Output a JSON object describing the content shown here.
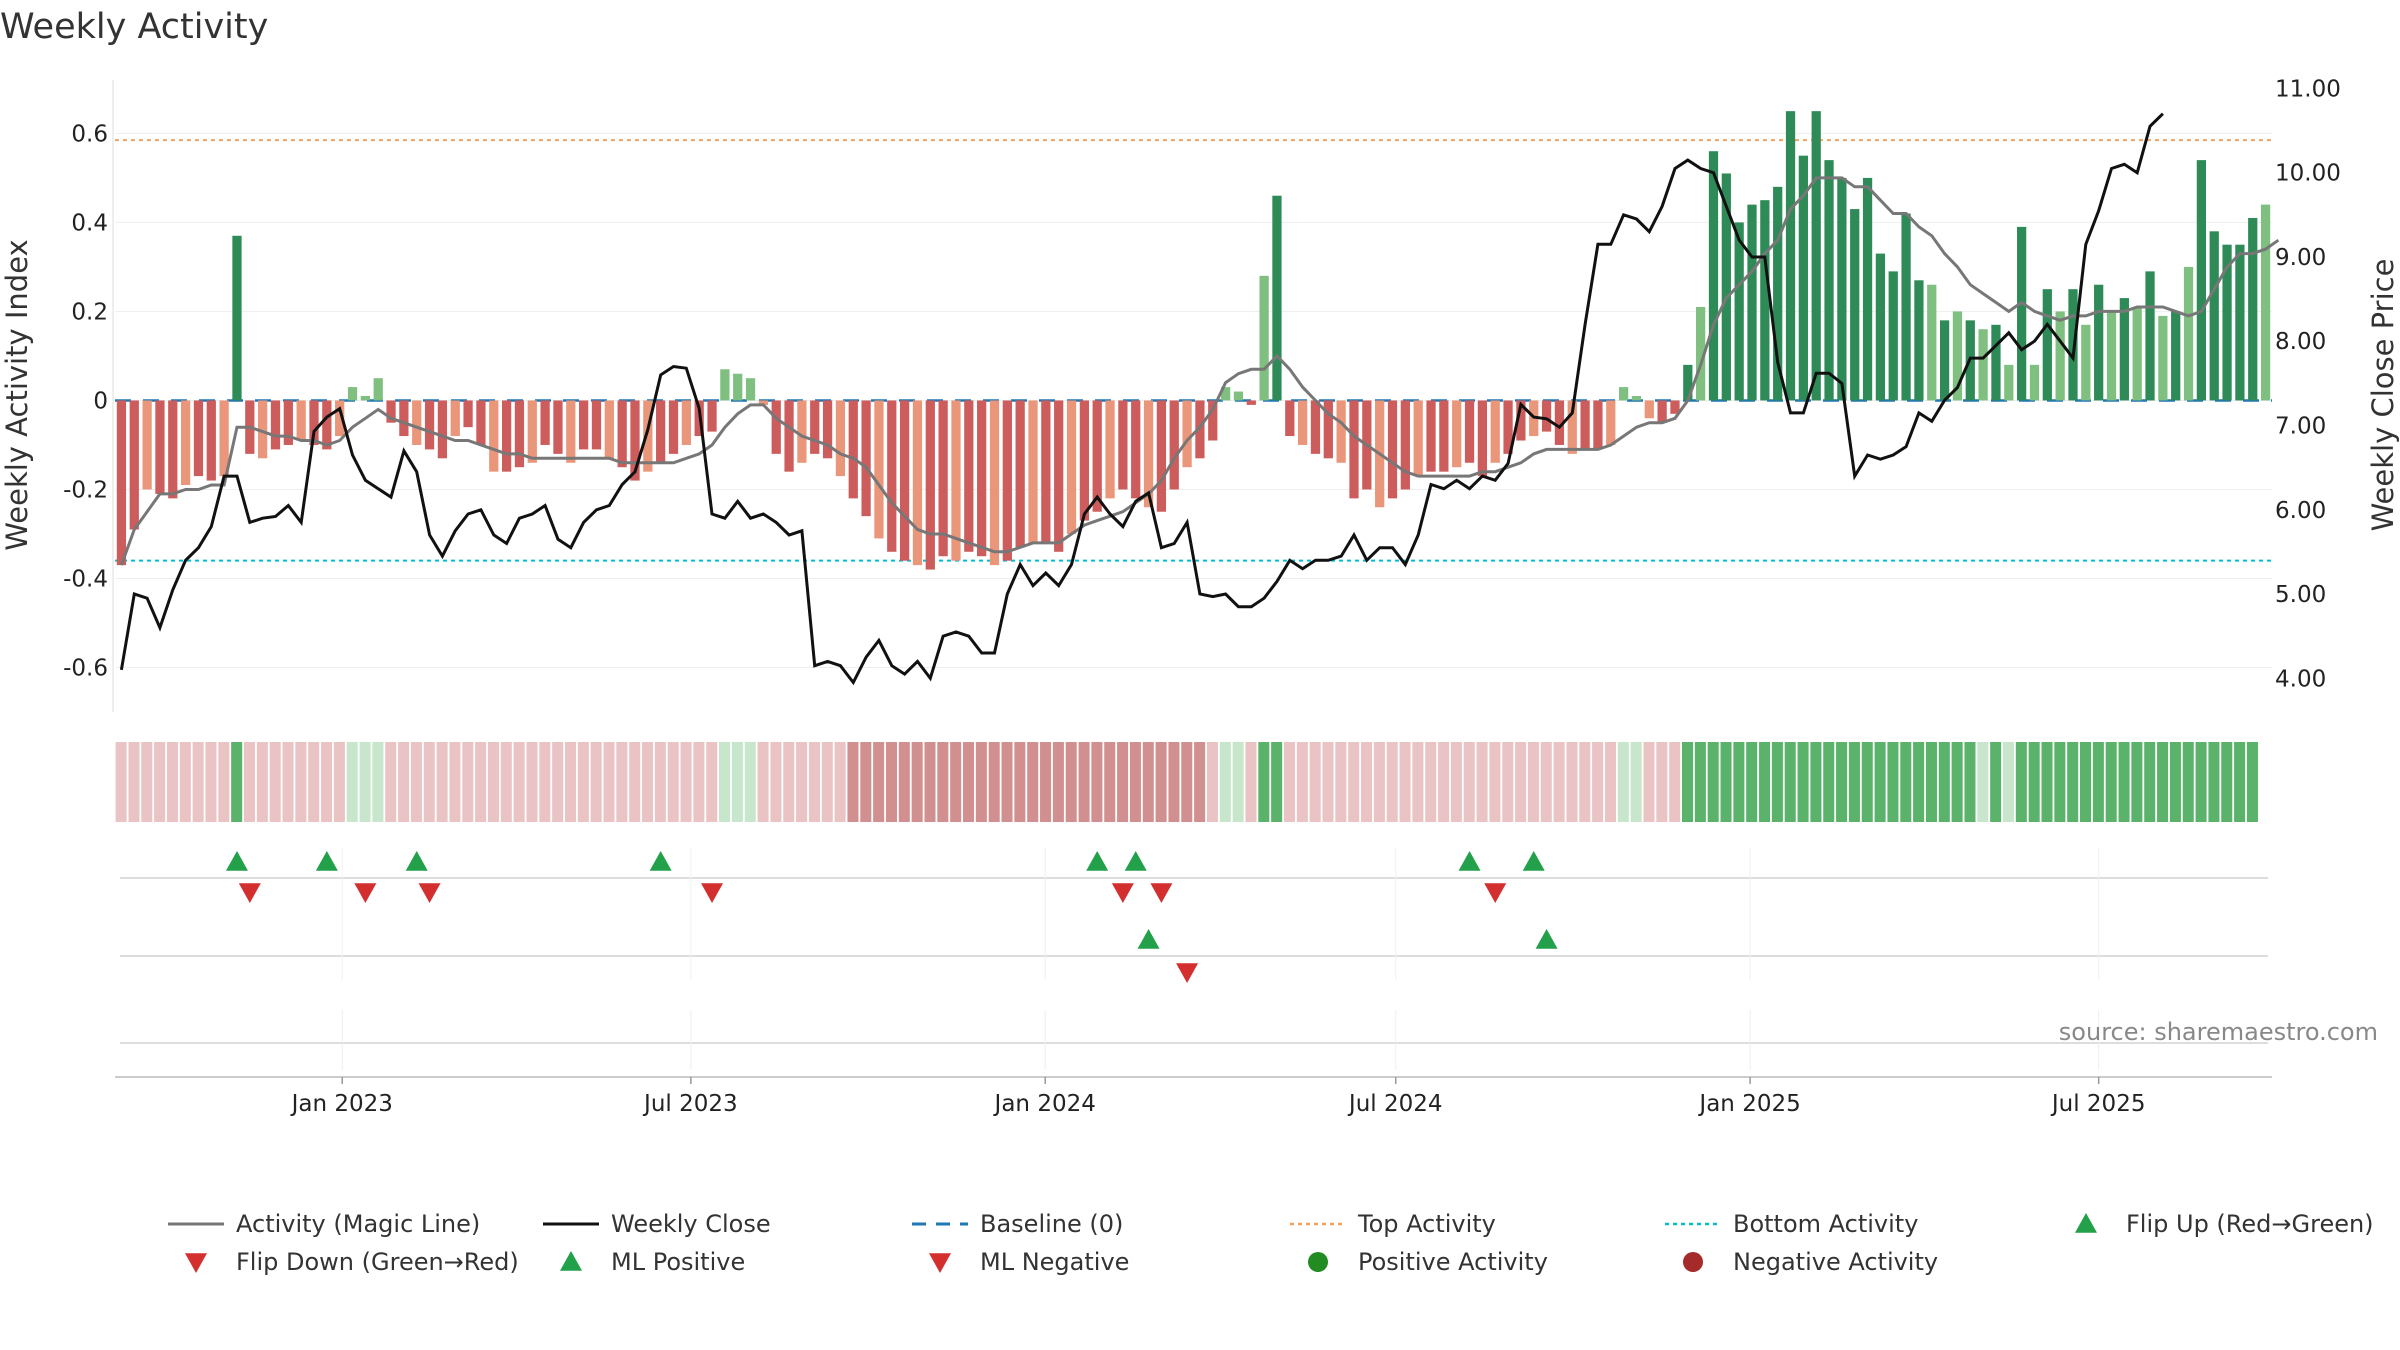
{
  "chart_data": {
    "type": "bar",
    "title": "Weekly Activity",
    "ylabel": "Weekly Activity Index",
    "y2label": "Weekly Close Price",
    "ylim": [
      -0.7,
      0.72
    ],
    "y2lim": [
      3.6,
      11.1
    ],
    "yticks": [
      -0.6,
      -0.4,
      -0.2,
      0,
      0.2,
      0.4,
      0.6
    ],
    "ytick_labels": [
      "-0.6",
      "-0.4",
      "-0.2",
      "0",
      "0.2",
      "0.4",
      "0.6"
    ],
    "y2ticks": [
      4,
      5,
      6,
      7,
      8,
      9,
      10,
      11
    ],
    "y2tick_labels": [
      "4.00",
      "5.00",
      "6.00",
      "7.00",
      "8.00",
      "9.00",
      "10.00",
      "11.00"
    ],
    "date_range": [
      "2022-09-05",
      "2025-09-29"
    ],
    "xticks": [
      "2023-01-01",
      "2023-07-01",
      "2024-01-01",
      "2024-07-01",
      "2025-01-01",
      "2025-07-01"
    ],
    "xtick_labels": [
      "Jan 2023",
      "Jul 2023",
      "Jan 2024",
      "Jul 2024",
      "Jan 2025",
      "Jul 2025"
    ],
    "reference_lines": {
      "baseline": 0,
      "top_activity": 0.585,
      "bottom_activity": -0.36
    },
    "activity": [
      -0.37,
      -0.29,
      -0.2,
      -0.21,
      -0.22,
      -0.19,
      -0.17,
      -0.18,
      -0.17,
      0.37,
      -0.12,
      -0.13,
      -0.11,
      -0.1,
      -0.09,
      -0.1,
      -0.11,
      -0.08,
      0.03,
      0.01,
      0.05,
      -0.05,
      -0.08,
      -0.1,
      -0.11,
      -0.13,
      -0.08,
      -0.06,
      -0.1,
      -0.16,
      -0.16,
      -0.15,
      -0.14,
      -0.1,
      -0.12,
      -0.14,
      -0.11,
      -0.11,
      -0.13,
      -0.15,
      -0.18,
      -0.16,
      -0.14,
      -0.12,
      -0.1,
      -0.08,
      -0.07,
      0.07,
      0.06,
      0.05,
      -0.01,
      -0.12,
      -0.16,
      -0.14,
      -0.12,
      -0.13,
      -0.17,
      -0.22,
      -0.26,
      -0.31,
      -0.34,
      -0.36,
      -0.37,
      -0.38,
      -0.35,
      -0.36,
      -0.34,
      -0.35,
      -0.37,
      -0.36,
      -0.33,
      -0.32,
      -0.32,
      -0.34,
      -0.3,
      -0.27,
      -0.25,
      -0.22,
      -0.2,
      -0.22,
      -0.24,
      -0.25,
      -0.2,
      -0.15,
      -0.13,
      -0.09,
      0.03,
      0.02,
      -0.01,
      0.28,
      0.46,
      -0.08,
      -0.1,
      -0.12,
      -0.13,
      -0.14,
      -0.22,
      -0.2,
      -0.24,
      -0.22,
      -0.2,
      -0.17,
      -0.16,
      -0.16,
      -0.15,
      -0.14,
      -0.17,
      -0.14,
      -0.12,
      -0.09,
      -0.08,
      -0.07,
      -0.1,
      -0.12,
      -0.11,
      -0.11,
      -0.1,
      0.03,
      0.01,
      -0.04,
      -0.05,
      -0.03,
      0.08,
      0.21,
      0.56,
      0.51,
      0.4,
      0.44,
      0.45,
      0.48,
      0.65,
      0.55,
      0.65,
      0.54,
      0.5,
      0.43,
      0.5,
      0.33,
      0.29,
      0.42,
      0.27,
      0.26,
      0.18,
      0.2,
      0.18,
      0.16,
      0.17,
      0.08,
      0.39,
      0.08,
      0.25,
      0.2,
      0.25,
      0.17,
      0.26,
      0.2,
      0.23,
      0.21,
      0.29,
      0.19,
      0.2,
      0.3,
      0.54,
      0.38,
      0.35,
      0.35,
      0.41,
      0.44
    ],
    "magic_line": [
      -0.37,
      -0.29,
      -0.25,
      -0.21,
      -0.21,
      -0.2,
      -0.2,
      -0.19,
      -0.19,
      -0.06,
      -0.06,
      -0.07,
      -0.08,
      -0.08,
      -0.09,
      -0.09,
      -0.1,
      -0.09,
      -0.06,
      -0.04,
      -0.02,
      -0.04,
      -0.05,
      -0.06,
      -0.07,
      -0.08,
      -0.09,
      -0.09,
      -0.1,
      -0.11,
      -0.12,
      -0.12,
      -0.13,
      -0.13,
      -0.13,
      -0.13,
      -0.13,
      -0.13,
      -0.13,
      -0.14,
      -0.14,
      -0.14,
      -0.14,
      -0.14,
      -0.13,
      -0.12,
      -0.1,
      -0.06,
      -0.03,
      -0.01,
      -0.01,
      -0.04,
      -0.06,
      -0.08,
      -0.09,
      -0.1,
      -0.12,
      -0.13,
      -0.15,
      -0.19,
      -0.23,
      -0.26,
      -0.29,
      -0.3,
      -0.3,
      -0.31,
      -0.32,
      -0.33,
      -0.34,
      -0.34,
      -0.33,
      -0.32,
      -0.32,
      -0.32,
      -0.3,
      -0.28,
      -0.27,
      -0.26,
      -0.25,
      -0.23,
      -0.21,
      -0.18,
      -0.13,
      -0.09,
      -0.06,
      -0.02,
      0.04,
      0.06,
      0.07,
      0.07,
      0.1,
      0.07,
      0.03,
      0.0,
      -0.03,
      -0.05,
      -0.08,
      -0.1,
      -0.12,
      -0.14,
      -0.16,
      -0.17,
      -0.17,
      -0.17,
      -0.17,
      -0.17,
      -0.16,
      -0.16,
      -0.15,
      -0.14,
      -0.12,
      -0.11,
      -0.11,
      -0.11,
      -0.11,
      -0.11,
      -0.1,
      -0.08,
      -0.06,
      -0.05,
      -0.05,
      -0.04,
      0.0,
      0.08,
      0.17,
      0.23,
      0.26,
      0.29,
      0.33,
      0.36,
      0.43,
      0.46,
      0.5,
      0.5,
      0.5,
      0.48,
      0.48,
      0.45,
      0.42,
      0.42,
      0.39,
      0.37,
      0.33,
      0.3,
      0.26,
      0.24,
      0.22,
      0.2,
      0.22,
      0.2,
      0.19,
      0.18,
      0.19,
      0.19,
      0.2,
      0.2,
      0.2,
      0.21,
      0.21,
      0.21,
      0.2,
      0.19,
      0.2,
      0.25,
      0.3,
      0.33,
      0.33,
      0.34,
      0.36
    ],
    "close": [
      4.1,
      5.0,
      4.95,
      4.6,
      5.05,
      5.4,
      5.55,
      5.8,
      6.4,
      6.4,
      5.85,
      5.9,
      5.92,
      6.05,
      5.85,
      6.93,
      7.1,
      7.2,
      6.65,
      6.35,
      6.25,
      6.15,
      6.7,
      6.45,
      5.7,
      5.45,
      5.75,
      5.95,
      6.0,
      5.7,
      5.6,
      5.9,
      5.95,
      6.05,
      5.65,
      5.55,
      5.85,
      6.0,
      6.05,
      6.3,
      6.45,
      6.95,
      7.6,
      7.7,
      7.68,
      7.2,
      5.95,
      5.9,
      6.1,
      5.9,
      5.95,
      5.85,
      5.7,
      5.75,
      4.15,
      4.2,
      4.15,
      3.95,
      4.25,
      4.45,
      4.15,
      4.05,
      4.2,
      4.0,
      4.5,
      4.55,
      4.5,
      4.3,
      4.3,
      5.0,
      5.35,
      5.1,
      5.25,
      5.1,
      5.35,
      5.95,
      6.15,
      5.95,
      5.8,
      6.1,
      6.2,
      5.55,
      5.6,
      5.85,
      5.0,
      4.97,
      5.0,
      4.85,
      4.85,
      4.95,
      5.15,
      5.4,
      5.3,
      5.4,
      5.4,
      5.45,
      5.7,
      5.4,
      5.55,
      5.55,
      5.35,
      5.7,
      6.3,
      6.25,
      6.35,
      6.25,
      6.4,
      6.35,
      6.55,
      7.25,
      7.1,
      7.08,
      6.98,
      7.15,
      8.2,
      9.15,
      9.15,
      9.5,
      9.45,
      9.3,
      9.6,
      10.05,
      10.15,
      10.05,
      10.0,
      9.6,
      9.2,
      9.0,
      9.0,
      7.75,
      7.15,
      7.15,
      7.62,
      7.62,
      7.5,
      6.4,
      6.65,
      6.6,
      6.65,
      6.75,
      7.15,
      7.05,
      7.3,
      7.45,
      7.8,
      7.8,
      7.95,
      8.1,
      7.9,
      8.0,
      8.2,
      8.0,
      7.8,
      9.15,
      9.55,
      10.05,
      10.1,
      10.0,
      10.55,
      10.7
    ],
    "price_bar_groups": [
      1,
      1,
      1,
      1,
      1,
      1,
      1,
      1,
      1,
      3,
      1,
      1,
      1,
      1,
      1,
      1,
      1,
      1,
      2,
      2,
      2,
      1,
      1,
      1,
      1,
      1,
      1,
      1,
      1,
      1,
      1,
      1,
      1,
      1,
      1,
      1,
      1,
      1,
      1,
      1,
      1,
      1,
      1,
      1,
      1,
      1,
      1,
      2,
      2,
      2,
      1,
      1,
      1,
      1,
      1,
      1,
      1,
      0,
      0,
      0,
      0,
      0,
      0,
      0,
      0,
      0,
      0,
      0,
      0,
      0,
      0,
      0,
      0,
      0,
      0,
      0,
      0,
      0,
      0,
      0,
      0,
      0,
      0,
      0,
      0,
      1,
      2,
      2,
      1,
      3,
      3,
      1,
      1,
      1,
      1,
      1,
      1,
      1,
      1,
      1,
      1,
      1,
      1,
      1,
      1,
      1,
      1,
      1,
      1,
      1,
      1,
      1,
      1,
      1,
      1,
      1,
      1,
      2,
      2,
      1,
      1,
      1,
      3,
      3,
      3,
      3,
      3,
      3,
      3,
      3,
      3,
      3,
      3,
      3,
      3,
      3,
      3,
      3,
      3,
      3,
      3,
      3,
      3,
      3,
      3,
      2,
      3,
      2,
      3,
      3,
      3,
      3,
      3,
      3,
      3,
      3,
      3,
      3,
      3,
      3,
      3,
      3,
      3,
      3,
      3,
      3,
      3
    ],
    "flip_up_weeks": [
      9,
      16,
      23,
      42,
      76,
      79,
      105,
      110
    ],
    "flip_down_weeks": [
      10,
      19,
      24,
      46,
      78,
      81,
      107
    ],
    "ml_positive_weeks": [
      80,
      111
    ],
    "ml_negative_weeks": [
      83
    ],
    "colors": {
      "pos_strong": "#2e8b57",
      "pos_light": "#7fbf7f",
      "neg_strong": "#cd5c5c",
      "neg_light": "#e9967a",
      "magic_line": "#777777",
      "close": "#111111",
      "baseline": "#1f77b4",
      "top": "#f4a460",
      "bottom": "#00bcd4",
      "marker_green": "#22a04a",
      "marker_red": "#d32f2f",
      "strip": [
        "#d28f8f",
        "#eac4c4",
        "#c7e6cc",
        "#5bb36b"
      ]
    },
    "legend": [
      {
        "label": "Activity (Magic Line)",
        "symbol": "line",
        "color": "#777777"
      },
      {
        "label": "Weekly Close",
        "symbol": "line",
        "color": "#111111"
      },
      {
        "label": "Baseline (0)",
        "symbol": "dash",
        "color": "#1f77b4"
      },
      {
        "label": "Top Activity",
        "symbol": "dot",
        "color": "#f4a460"
      },
      {
        "label": "Bottom Activity",
        "symbol": "dot",
        "color": "#00bcd4"
      },
      {
        "label": "Flip Up (Red→Green)",
        "symbol": "tri-up",
        "color": "#22a04a"
      },
      {
        "label": "Flip Down (Green→Red)",
        "symbol": "tri-down",
        "color": "#d32f2f"
      },
      {
        "label": "ML Positive",
        "symbol": "tri-up",
        "color": "#22a04a"
      },
      {
        "label": "ML Negative",
        "symbol": "tri-down",
        "color": "#d32f2f"
      },
      {
        "label": "Positive Activity",
        "symbol": "circle",
        "color": "#228b22"
      },
      {
        "label": "Negative Activity",
        "symbol": "circle",
        "color": "#a52a2a"
      }
    ],
    "source": "source: sharemaestro.com"
  }
}
